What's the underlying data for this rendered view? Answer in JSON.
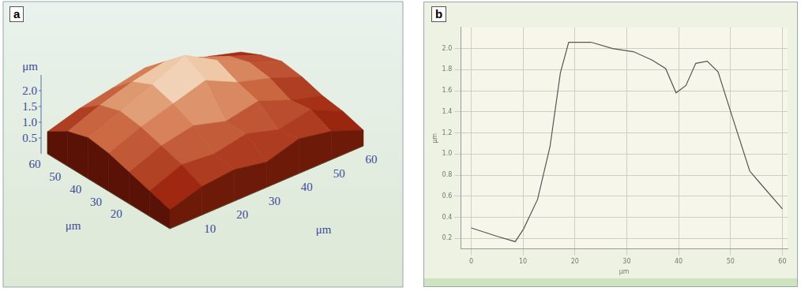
{
  "chart_data": [
    {
      "type": "surface",
      "title": "a",
      "x_label": "μm",
      "y_label": "μm",
      "z_label": "μm",
      "x": [
        0,
        10,
        20,
        30,
        40,
        50,
        60
      ],
      "y": [
        0,
        10,
        20,
        30,
        40,
        50,
        60
      ],
      "z": [
        [
          0.6,
          0.9,
          1.0,
          0.8,
          1.1,
          0.9,
          0.5
        ],
        [
          0.8,
          1.2,
          1.1,
          1.3,
          1.0,
          1.2,
          0.7
        ],
        [
          1.0,
          1.4,
          1.6,
          1.3,
          1.5,
          1.1,
          0.8
        ],
        [
          1.2,
          1.6,
          1.9,
          2.2,
          1.7,
          1.4,
          1.0
        ],
        [
          1.3,
          1.7,
          2.1,
          2.6,
          2.0,
          1.5,
          1.1
        ],
        [
          1.1,
          1.5,
          1.8,
          2.0,
          1.7,
          1.3,
          0.9
        ],
        [
          0.7,
          1.0,
          1.2,
          1.4,
          1.1,
          0.9,
          0.6
        ]
      ],
      "xlim": [
        0,
        60
      ],
      "ylim": [
        0,
        60
      ],
      "zlim": [
        0,
        2.5
      ],
      "xticks": [
        20,
        30,
        40,
        50,
        60
      ],
      "yticks": [
        10,
        20,
        30,
        40,
        50,
        60
      ],
      "zticks": [
        0.5,
        {
          "value": 1,
          "label": "1.0"
        },
        1.5,
        {
          "value": 2,
          "label": "2.0"
        }
      ]
    },
    {
      "type": "line",
      "title": "b",
      "x_label": "μm",
      "y_label": "μm",
      "x": [
        0,
        5.05,
        8.5,
        10.1,
        12.8,
        15.2,
        17.2,
        18.8,
        23.1,
        27.3,
        31.3,
        34.9,
        37.5,
        39.5,
        41.4,
        43.3,
        45.5,
        47.6,
        50.1,
        53.7,
        55.6,
        60
      ],
      "values": [
        0.3,
        0.22,
        0.17,
        0.29,
        0.57,
        1.07,
        1.77,
        2.06,
        2.06,
        2.0,
        1.97,
        1.89,
        1.81,
        1.58,
        1.65,
        1.86,
        1.88,
        1.78,
        1.39,
        0.84,
        0.73,
        0.48
      ],
      "color": "#555555",
      "xlim": [
        -2,
        61
      ],
      "ylim": [
        0.1,
        2.2
      ],
      "xticks": [
        0,
        10,
        20,
        30,
        40,
        50,
        60
      ],
      "yticks": [
        0.2,
        0.4,
        0.6,
        0.8,
        {
          "value": 1,
          "label": "1.0"
        },
        1.2,
        1.4,
        1.6,
        1.8,
        {
          "value": 2,
          "label": "2.0"
        }
      ],
      "grid": true
    }
  ]
}
